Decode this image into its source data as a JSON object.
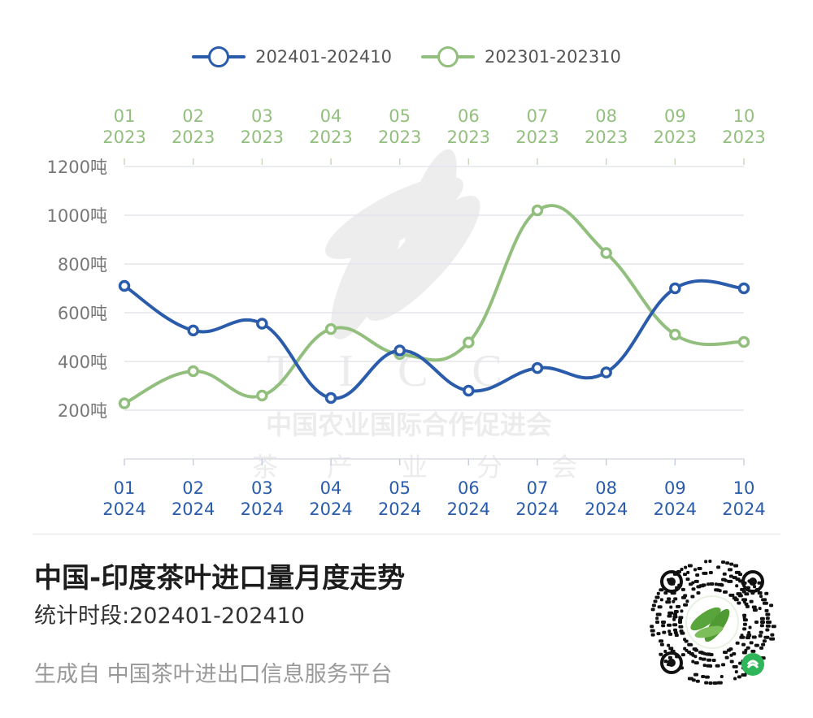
{
  "chart_data": {
    "type": "line",
    "legend_position": "top-center",
    "grid": true,
    "ylim": [
      0,
      1200
    ],
    "y_ticks": [
      200,
      400,
      600,
      800,
      1000,
      1200
    ],
    "y_unit": "吨",
    "x_bottom": {
      "months": [
        "01",
        "02",
        "03",
        "04",
        "05",
        "06",
        "07",
        "08",
        "09",
        "10"
      ],
      "year": "2024",
      "color": "#2a5cab"
    },
    "x_top": {
      "months": [
        "01",
        "02",
        "03",
        "04",
        "05",
        "06",
        "07",
        "08",
        "09",
        "10"
      ],
      "year": "2023",
      "color": "#93bf7e"
    },
    "series": [
      {
        "name": "202401-202410",
        "color": "#2a5cab",
        "values": [
          710,
          527,
          555,
          250,
          445,
          280,
          373,
          355,
          700,
          700
        ]
      },
      {
        "name": "202301-202310",
        "color": "#93bf7e",
        "values": [
          228,
          360,
          260,
          533,
          430,
          478,
          1020,
          845,
          510,
          480
        ]
      }
    ]
  },
  "watermark": {
    "letters": "TICC",
    "org": "中国农业国际合作促进会",
    "branch": [
      "茶",
      "产",
      "业",
      "分",
      "会"
    ]
  },
  "footer": {
    "title": "中国-印度茶叶进口量月度走势",
    "period": "统计时段:202401-202410",
    "source": "生成自 中国茶叶进出口信息服务平台"
  },
  "qr": {
    "icon": "mini-program-qr-code"
  }
}
